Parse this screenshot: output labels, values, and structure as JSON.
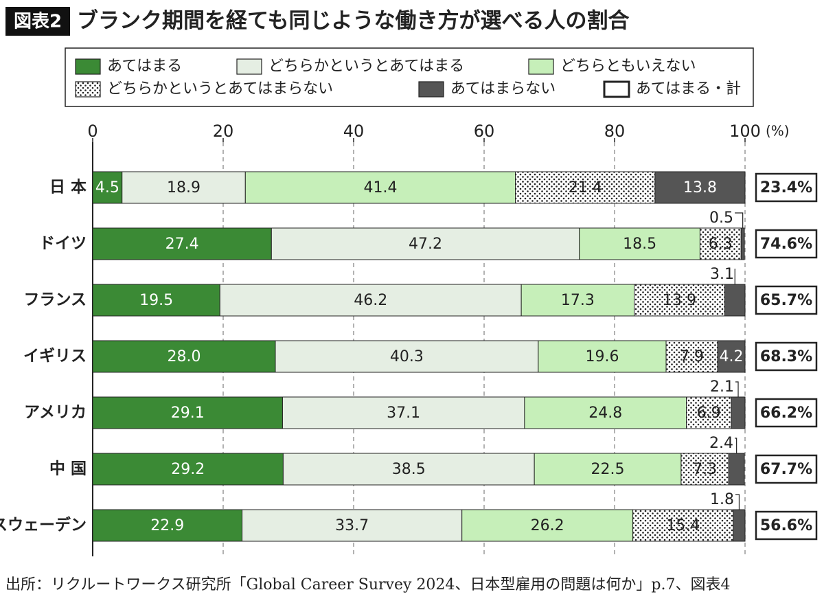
{
  "chart_data": {
    "type": "stacked-bar",
    "figure_label": "図表2",
    "title": "ブランク期間を経ても同じような働き方が選べる人の割合",
    "x_unit": "(%)",
    "categories": [
      "日 本",
      "ドイツ",
      "フランス",
      "イギリス",
      "アメリカ",
      "中 国",
      "スウェーデン"
    ],
    "xlim": [
      0,
      100
    ],
    "xticks": [
      0,
      20,
      40,
      60,
      80,
      100
    ],
    "grid": true,
    "series": [
      {
        "name": "あてはまる",
        "color": "#3b8a35",
        "values": [
          4.5,
          27.4,
          19.5,
          28.0,
          29.1,
          29.2,
          22.9
        ],
        "value_labels": [
          "4.5",
          "27.4",
          "19.5",
          "28.0",
          "29.1",
          "29.2",
          "22.9"
        ]
      },
      {
        "name": "どちらかというとあてはまる",
        "color": "#e5eee3",
        "values": [
          18.9,
          47.2,
          46.2,
          40.3,
          37.1,
          38.5,
          33.7
        ]
      },
      {
        "name": "どちらともいえない",
        "color": "#c6efb9",
        "values": [
          41.4,
          18.5,
          17.3,
          19.6,
          24.8,
          22.5,
          26.2
        ]
      },
      {
        "name": "どちらかというとあてはまらない",
        "color": "#ffffff",
        "fill_pattern": "dots",
        "values": [
          21.4,
          6.3,
          13.9,
          7.9,
          6.9,
          7.3,
          15.4
        ]
      },
      {
        "name": "あてはまらない",
        "color": "#555555",
        "values": [
          13.8,
          0.5,
          3.1,
          4.2,
          2.1,
          2.4,
          1.8
        ]
      }
    ],
    "totals": {
      "name": "あてはまる・計",
      "values": [
        23.4,
        74.6,
        65.7,
        68.3,
        66.2,
        67.7,
        56.6
      ],
      "value_labels": [
        "23.4%",
        "74.6%",
        "65.7%",
        "68.3%",
        "66.2%",
        "67.7%",
        "56.6%"
      ]
    },
    "source": "出所：リクルートワークス研究所「Global Career Survey 2024、日本型雇用の問題は何か」p.7、図表4"
  }
}
